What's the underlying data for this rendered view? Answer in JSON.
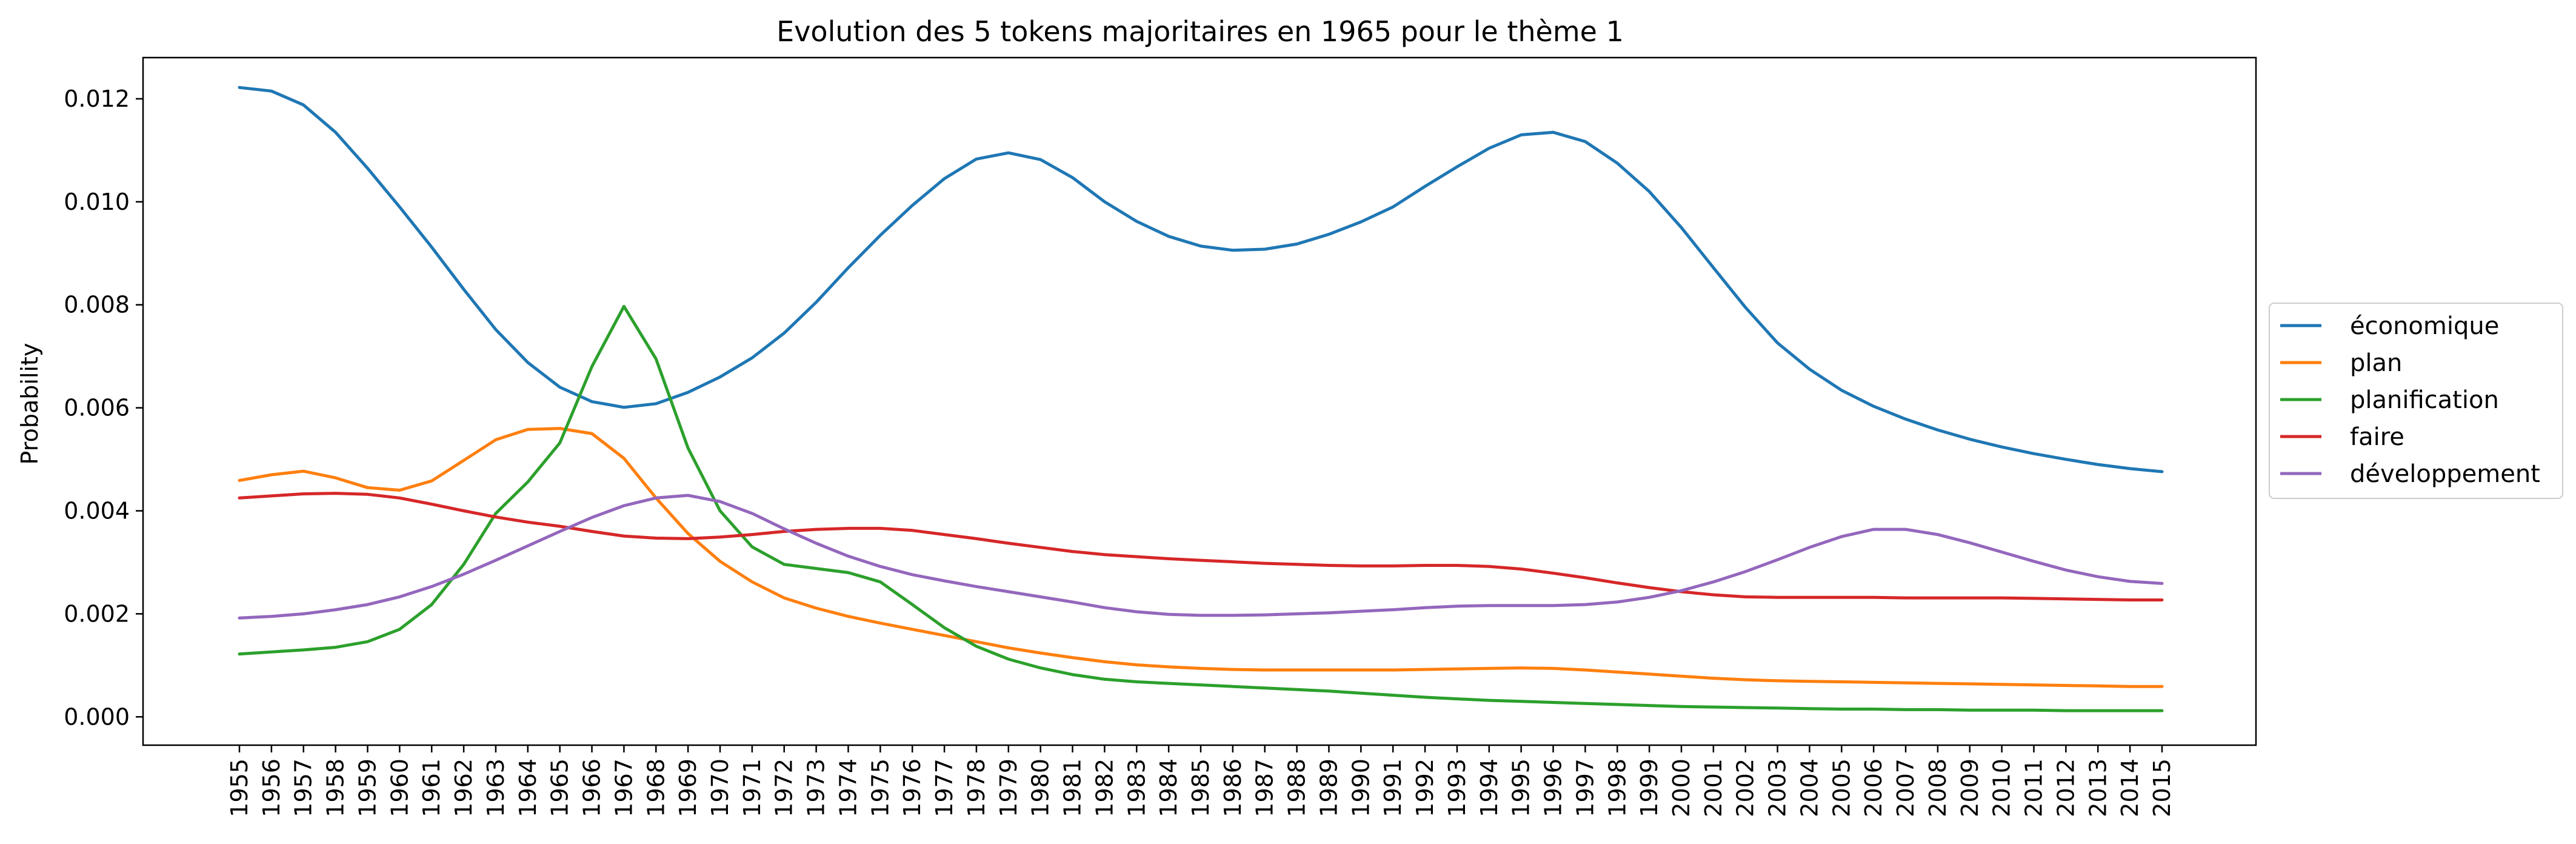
{
  "chart_data": {
    "type": "line",
    "title": "Evolution des 5 tokens majoritaires en 1965 pour le thème 1",
    "xlabel": "",
    "ylabel": "Probability",
    "ylim": [
      -0.00055,
      0.0128
    ],
    "yticks": [
      "0.000",
      "0.002",
      "0.004",
      "0.006",
      "0.008",
      "0.010",
      "0.012"
    ],
    "x": [
      "1955",
      "1956",
      "1957",
      "1958",
      "1959",
      "1960",
      "1961",
      "1962",
      "1963",
      "1964",
      "1965",
      "1966",
      "1967",
      "1968",
      "1969",
      "1970",
      "1971",
      "1972",
      "1973",
      "1974",
      "1975",
      "1976",
      "1977",
      "1978",
      "1979",
      "1980",
      "1981",
      "1982",
      "1983",
      "1984",
      "1985",
      "1986",
      "1987",
      "1988",
      "1989",
      "1990",
      "1991",
      "1992",
      "1993",
      "1994",
      "1995",
      "1996",
      "1997",
      "1998",
      "1999",
      "2000",
      "2001",
      "2002",
      "2003",
      "2004",
      "2005",
      "2006",
      "2007",
      "2008",
      "2009",
      "2010",
      "2011",
      "2012",
      "2013",
      "2014",
      "2015"
    ],
    "grid": false,
    "legend_position": "right",
    "series": [
      {
        "name": "économique",
        "color": "#1f77b4",
        "values": [
          0.01222,
          0.01215,
          0.01188,
          0.01135,
          0.01065,
          0.0099,
          0.00912,
          0.0083,
          0.00752,
          0.00688,
          0.0064,
          0.00612,
          0.00601,
          0.00608,
          0.0063,
          0.0066,
          0.00697,
          0.00745,
          0.00805,
          0.00872,
          0.00935,
          0.00993,
          0.01045,
          0.01083,
          0.01095,
          0.01082,
          0.01047,
          0.01,
          0.00962,
          0.00933,
          0.00914,
          0.00906,
          0.00908,
          0.00918,
          0.00937,
          0.00961,
          0.0099,
          0.0103,
          0.01068,
          0.01104,
          0.0113,
          0.01135,
          0.01117,
          0.01075,
          0.0102,
          0.0095,
          0.00872,
          0.00795,
          0.00726,
          0.00675,
          0.00634,
          0.00603,
          0.00578,
          0.00557,
          0.00539,
          0.00524,
          0.00511,
          0.005,
          0.0049,
          0.00482,
          0.00476
        ]
      },
      {
        "name": "plan",
        "color": "#ff7f0e",
        "values": [
          0.00459,
          0.0047,
          0.00477,
          0.00464,
          0.00445,
          0.0044,
          0.00458,
          0.00498,
          0.00538,
          0.00558,
          0.0056,
          0.0055,
          0.00502,
          0.00425,
          0.00356,
          0.00302,
          0.00262,
          0.00231,
          0.00211,
          0.00195,
          0.00182,
          0.0017,
          0.00158,
          0.00146,
          0.00134,
          0.00124,
          0.00115,
          0.00107,
          0.00101,
          0.00097,
          0.00094,
          0.00092,
          0.00091,
          0.00091,
          0.00091,
          0.00091,
          0.00091,
          0.00092,
          0.00093,
          0.00094,
          0.00095,
          0.00094,
          0.00091,
          0.00087,
          0.00083,
          0.00079,
          0.00075,
          0.00072,
          0.0007,
          0.00069,
          0.00068,
          0.00067,
          0.00066,
          0.00065,
          0.00064,
          0.00063,
          0.00062,
          0.00061,
          0.0006,
          0.00059,
          0.00059
        ]
      },
      {
        "name": "planification",
        "color": "#2ca02c",
        "values": [
          0.00122,
          0.00126,
          0.0013,
          0.00135,
          0.00146,
          0.0017,
          0.00218,
          0.00296,
          0.00395,
          0.00456,
          0.00532,
          0.0068,
          0.00797,
          0.00695,
          0.00522,
          0.004,
          0.0033,
          0.00296,
          0.00288,
          0.0028,
          0.00262,
          0.00218,
          0.00173,
          0.00137,
          0.00112,
          0.00095,
          0.00082,
          0.00073,
          0.00068,
          0.00065,
          0.00062,
          0.00059,
          0.00056,
          0.00053,
          0.0005,
          0.00046,
          0.00042,
          0.00038,
          0.00035,
          0.00032,
          0.0003,
          0.00028,
          0.00026,
          0.00024,
          0.00022,
          0.0002,
          0.00019,
          0.00018,
          0.00017,
          0.00016,
          0.00015,
          0.00015,
          0.00014,
          0.00014,
          0.00013,
          0.00013,
          0.00013,
          0.00012,
          0.00012,
          0.00012,
          0.00012
        ]
      },
      {
        "name": "faire",
        "color": "#d62728",
        "values": [
          0.00425,
          0.00429,
          0.00433,
          0.00434,
          0.00432,
          0.00425,
          0.00413,
          0.004,
          0.00388,
          0.00378,
          0.0037,
          0.0036,
          0.00351,
          0.00347,
          0.00346,
          0.00349,
          0.00354,
          0.0036,
          0.00364,
          0.00366,
          0.00366,
          0.00362,
          0.00354,
          0.00346,
          0.00337,
          0.00329,
          0.00321,
          0.00315,
          0.00311,
          0.00307,
          0.00304,
          0.00301,
          0.00298,
          0.00296,
          0.00294,
          0.00293,
          0.00293,
          0.00294,
          0.00294,
          0.00292,
          0.00287,
          0.00279,
          0.0027,
          0.0026,
          0.00251,
          0.00243,
          0.00237,
          0.00233,
          0.00232,
          0.00232,
          0.00232,
          0.00232,
          0.00231,
          0.00231,
          0.00231,
          0.00231,
          0.0023,
          0.00229,
          0.00228,
          0.00227,
          0.00227
        ]
      },
      {
        "name": "développement",
        "color": "#9467bd",
        "values": [
          0.00192,
          0.00195,
          0.002,
          0.00208,
          0.00218,
          0.00233,
          0.00253,
          0.00277,
          0.00304,
          0.00332,
          0.0036,
          0.00387,
          0.0041,
          0.00425,
          0.0043,
          0.00418,
          0.00395,
          0.00365,
          0.00337,
          0.00312,
          0.00292,
          0.00276,
          0.00264,
          0.00253,
          0.00243,
          0.00233,
          0.00223,
          0.00212,
          0.00204,
          0.00199,
          0.00197,
          0.00197,
          0.00198,
          0.002,
          0.00202,
          0.00205,
          0.00208,
          0.00212,
          0.00215,
          0.00216,
          0.00216,
          0.00216,
          0.00218,
          0.00223,
          0.00232,
          0.00245,
          0.00262,
          0.00282,
          0.00305,
          0.00329,
          0.0035,
          0.00364,
          0.00364,
          0.00354,
          0.00338,
          0.0032,
          0.00302,
          0.00285,
          0.00272,
          0.00263,
          0.00259
        ]
      }
    ]
  }
}
